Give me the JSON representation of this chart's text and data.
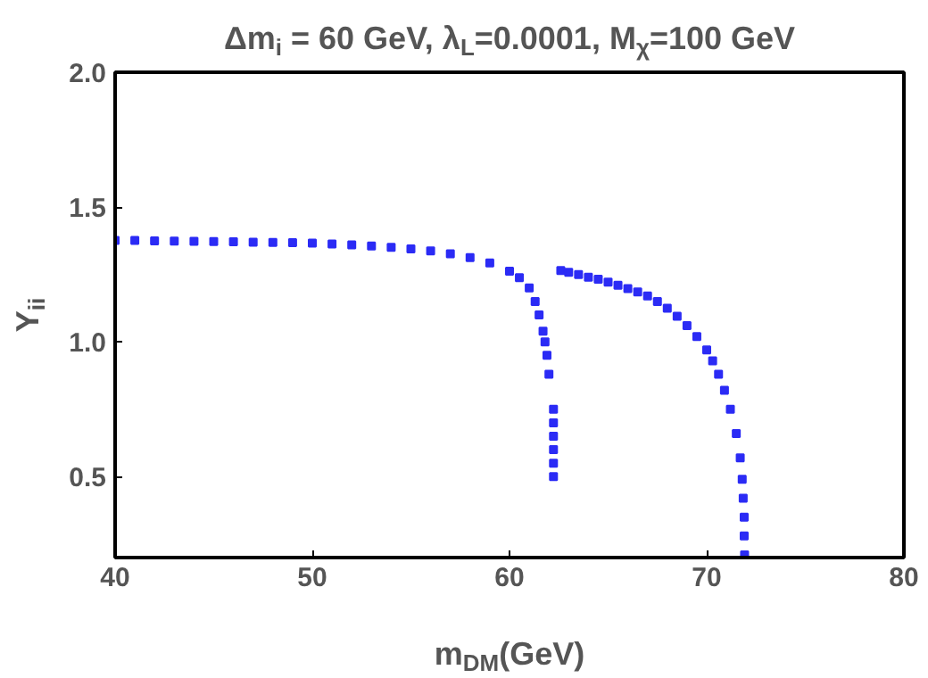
{
  "chart_data": {
    "type": "scatter",
    "title": "Δm$_{i}$ = 60 GeV, λ$_{L}$=0.0001, M$_{χ}$=100 GeV",
    "xlabel": "m$_{DM}$(GeV)",
    "ylabel": "Y$_{ii}$",
    "xlim": [
      40,
      80
    ],
    "ylim": [
      0.2,
      2.0
    ],
    "xticks": [
      40,
      50,
      60,
      70,
      80
    ],
    "yticks": [
      0.5,
      {
        "value": 1,
        "label": "1.0"
      },
      1.5,
      {
        "value": 2,
        "label": "2.0"
      }
    ],
    "grid": false,
    "marker": "square",
    "series": [
      {
        "color": "#2b2bf5",
        "x": [
          40,
          41,
          42,
          43,
          44,
          45,
          46,
          47,
          48,
          49,
          50,
          51,
          52,
          53,
          54,
          55,
          56,
          57,
          58,
          59,
          60,
          60.5,
          61,
          61.3,
          61.5,
          61.7,
          61.8,
          61.9,
          62.0,
          62.23,
          62.23,
          62.23,
          62.23,
          62.23,
          62.23,
          62.6,
          63,
          63.5,
          64,
          64.5,
          65,
          65.5,
          66,
          66.5,
          67,
          67.5,
          68,
          68.5,
          69,
          69.5,
          70,
          70.3,
          70.6,
          70.9,
          71.2,
          71.5,
          71.7,
          71.8,
          71.85,
          71.9,
          71.9,
          71.92
        ],
        "values": [
          1.376,
          1.376,
          1.375,
          1.374,
          1.373,
          1.372,
          1.371,
          1.37,
          1.369,
          1.368,
          1.366,
          1.363,
          1.36,
          1.356,
          1.351,
          1.345,
          1.337,
          1.327,
          1.313,
          1.293,
          1.262,
          1.238,
          1.2,
          1.15,
          1.1,
          1.04,
          1.0,
          0.95,
          0.88,
          0.75,
          0.7,
          0.65,
          0.6,
          0.55,
          0.5,
          1.265,
          1.258,
          1.25,
          1.24,
          1.232,
          1.222,
          1.21,
          1.198,
          1.185,
          1.17,
          1.15,
          1.125,
          1.095,
          1.06,
          1.02,
          0.97,
          0.93,
          0.88,
          0.82,
          0.75,
          0.66,
          0.57,
          0.49,
          0.42,
          0.35,
          0.28,
          0.21
        ]
      }
    ]
  }
}
